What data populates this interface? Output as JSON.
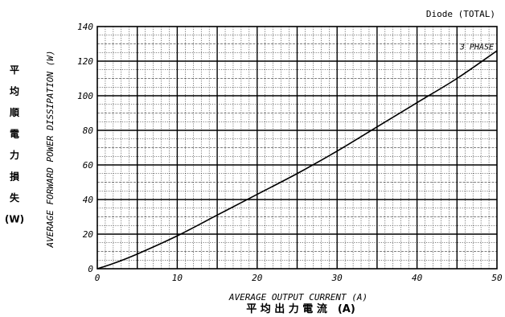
{
  "chart_data": {
    "type": "line",
    "title": "Diode (TOTAL)",
    "xlabel": "AVERAGE OUTPUT CURRENT (A)",
    "xlabel_jp": "平 均 出 力 電 流　(A)",
    "ylabel": "AVERAGE FORWARD POWER DISSIPATION (W)",
    "ylabel_jp": [
      "平",
      "均",
      "順",
      "電",
      "力",
      "損",
      "失",
      "(W)"
    ],
    "xlim": [
      0,
      50
    ],
    "ylim": [
      0,
      140
    ],
    "x_ticks": [
      0,
      10,
      20,
      30,
      40,
      50
    ],
    "y_ticks": [
      0,
      20,
      40,
      60,
      80,
      100,
      120,
      140
    ],
    "grid": true,
    "series": [
      {
        "name": "3 PHASE",
        "x": [
          0,
          2,
          5,
          10,
          15,
          20,
          25,
          30,
          35,
          40,
          45,
          50
        ],
        "y": [
          0,
          3,
          8.5,
          19,
          31,
          43,
          55,
          68,
          82,
          96,
          110,
          126
        ]
      }
    ]
  }
}
